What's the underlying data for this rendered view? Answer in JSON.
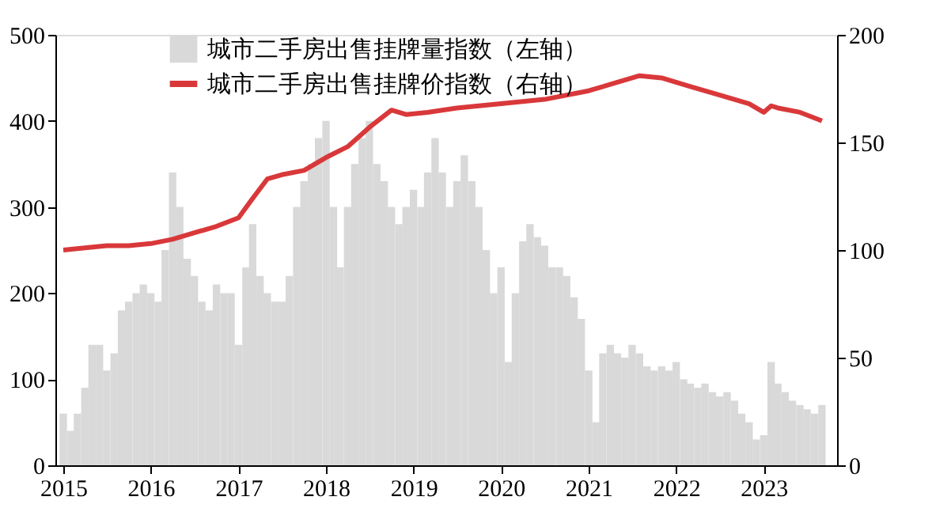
{
  "chart_data": {
    "type": "bar",
    "x": [
      "2015-01",
      "2015-02",
      "2015-03",
      "2015-04",
      "2015-05",
      "2015-06",
      "2015-07",
      "2015-08",
      "2015-09",
      "2015-10",
      "2015-11",
      "2015-12",
      "2016-01",
      "2016-02",
      "2016-03",
      "2016-04",
      "2016-05",
      "2016-06",
      "2016-07",
      "2016-08",
      "2016-09",
      "2016-10",
      "2016-11",
      "2016-12",
      "2017-01",
      "2017-02",
      "2017-03",
      "2017-04",
      "2017-05",
      "2017-06",
      "2017-07",
      "2017-08",
      "2017-09",
      "2017-10",
      "2017-11",
      "2017-12",
      "2018-01",
      "2018-02",
      "2018-03",
      "2018-04",
      "2018-05",
      "2018-06",
      "2018-07",
      "2018-08",
      "2018-09",
      "2018-10",
      "2018-11",
      "2018-12",
      "2019-01",
      "2019-02",
      "2019-03",
      "2019-04",
      "2019-05",
      "2019-06",
      "2019-07",
      "2019-08",
      "2019-09",
      "2019-10",
      "2019-11",
      "2019-12",
      "2020-01",
      "2020-02",
      "2020-03",
      "2020-04",
      "2020-05",
      "2020-06",
      "2020-07",
      "2020-08",
      "2020-09",
      "2020-10",
      "2020-11",
      "2020-12",
      "2021-01",
      "2021-02",
      "2021-03",
      "2021-04",
      "2021-05",
      "2021-06",
      "2021-07",
      "2021-08",
      "2021-09",
      "2021-10",
      "2021-11",
      "2021-12",
      "2022-01",
      "2022-02",
      "2022-03",
      "2022-04",
      "2022-05",
      "2022-06",
      "2022-07",
      "2022-08",
      "2022-09",
      "2022-10",
      "2022-11",
      "2022-12",
      "2023-01",
      "2023-02",
      "2023-03",
      "2023-04",
      "2023-05",
      "2023-06",
      "2023-07",
      "2023-08",
      "2023-09"
    ],
    "series": [
      {
        "name": "城市二手房出售挂牌量指数（左轴）",
        "color": "#d9d9d9",
        "values": [
          60,
          40,
          60,
          90,
          140,
          140,
          110,
          130,
          180,
          190,
          200,
          210,
          200,
          190,
          250,
          340,
          300,
          240,
          220,
          190,
          180,
          210,
          200,
          200,
          140,
          230,
          280,
          220,
          200,
          190,
          190,
          220,
          300,
          330,
          350,
          380,
          400,
          300,
          230,
          300,
          350,
          380,
          400,
          350,
          330,
          300,
          280,
          300,
          320,
          300,
          340,
          380,
          340,
          300,
          330,
          360,
          330,
          300,
          250,
          200,
          230,
          120,
          200,
          260,
          280,
          265,
          255,
          230,
          230,
          220,
          195,
          170,
          110,
          50,
          130,
          140,
          130,
          125,
          140,
          130,
          115,
          110,
          115,
          110,
          120,
          100,
          95,
          90,
          95,
          85,
          80,
          85,
          75,
          60,
          50,
          30,
          35,
          120,
          95,
          85,
          75,
          70,
          65,
          60,
          70
        ]
      },
      {
        "name": "城市二手房出售挂牌价指数（右轴）",
        "type": "line",
        "axis": "y2",
        "color": "#d9383a",
        "x": [
          "2015-01",
          "2015-04",
          "2015-07",
          "2015-10",
          "2016-01",
          "2016-04",
          "2016-07",
          "2016-10",
          "2017-01",
          "2017-03",
          "2017-05",
          "2017-07",
          "2017-10",
          "2018-01",
          "2018-04",
          "2018-07",
          "2018-10",
          "2018-12",
          "2019-03",
          "2019-07",
          "2019-10",
          "2020-01",
          "2020-07",
          "2021-01",
          "2021-05",
          "2021-08",
          "2021-11",
          "2022-03",
          "2022-07",
          "2022-11",
          "2023-01",
          "2023-02",
          "2023-03",
          "2023-06",
          "2023-09"
        ],
        "values": [
          100,
          101,
          102,
          102,
          103,
          105,
          108,
          111,
          115,
          124,
          133,
          135,
          137,
          143,
          148,
          157,
          165,
          163,
          164,
          166,
          167,
          168,
          170,
          174,
          178,
          181,
          180,
          176,
          172,
          168,
          164,
          167,
          166,
          164,
          160
        ]
      }
    ],
    "xlim": [
      "2015-01-01",
      "2023-10-01"
    ],
    "xticks": [
      "2015",
      "2016",
      "2017",
      "2018",
      "2019",
      "2020",
      "2021",
      "2022",
      "2023"
    ],
    "ylim": [
      0,
      500
    ],
    "yticks": [
      0,
      100,
      200,
      300,
      400,
      500
    ],
    "y2lim": [
      0,
      200
    ],
    "y2ticks": [
      0,
      50,
      100,
      150,
      200
    ],
    "grid": false,
    "legend": "top left"
  }
}
